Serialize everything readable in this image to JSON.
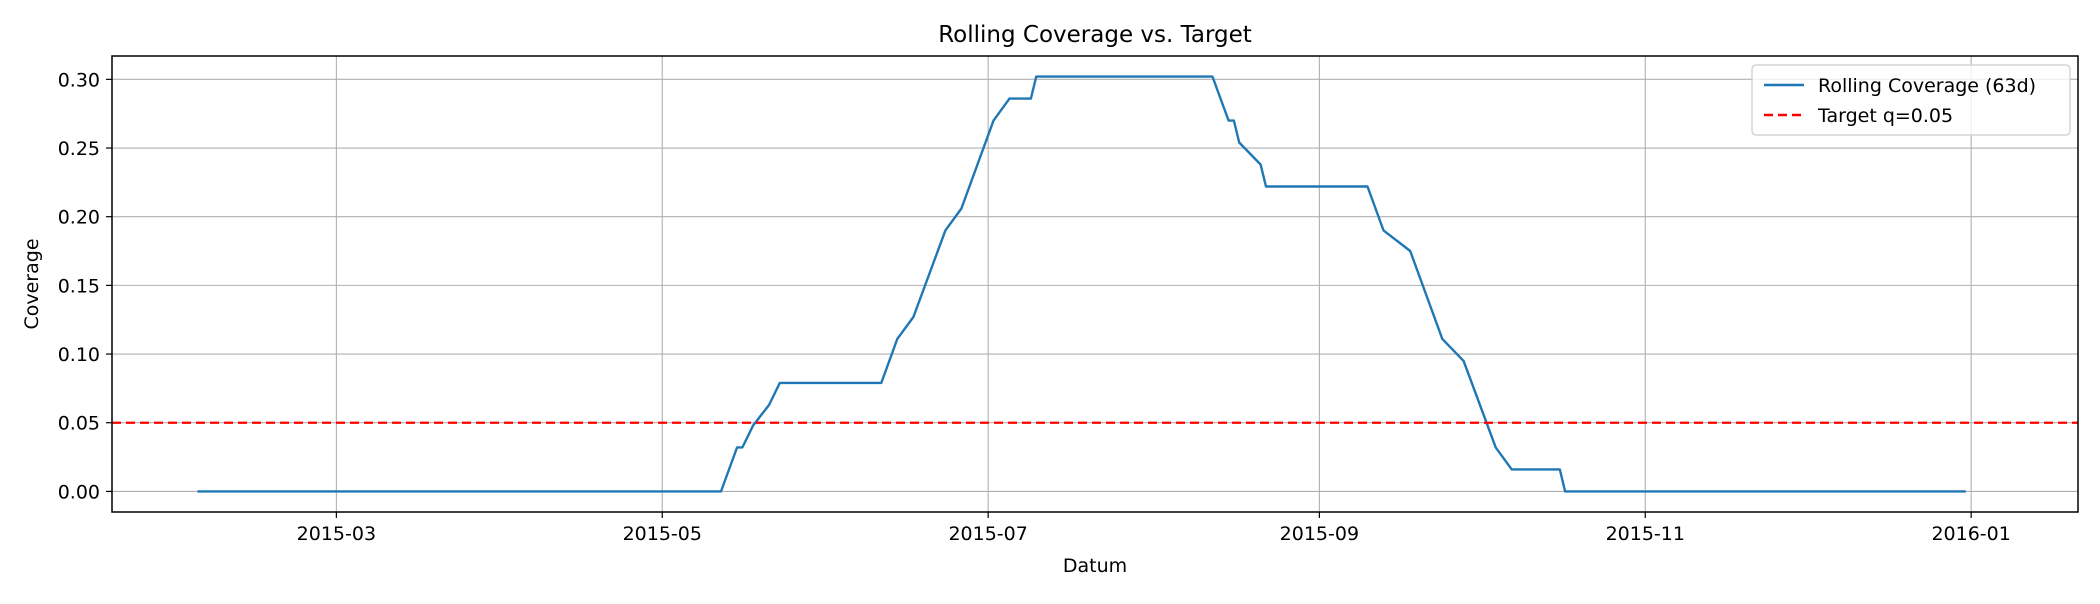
{
  "chart_data": {
    "type": "line",
    "title": "Rolling Coverage vs. Target",
    "xlabel": "Datum",
    "ylabel": "Coverage",
    "xlim": [
      "2015-01-18",
      "2016-01-21"
    ],
    "ylim": [
      -0.015,
      0.317
    ],
    "xticks": [
      "2015-03-01",
      "2015-05-01",
      "2015-07-01",
      "2015-09-01",
      "2015-11-01",
      "2016-01-01"
    ],
    "xtick_labels": [
      "2015-03",
      "2015-05",
      "2015-07",
      "2015-09",
      "2015-11",
      "2016-01"
    ],
    "yticks": [
      0.0,
      0.05,
      0.1,
      0.15,
      0.2,
      0.25,
      0.3
    ],
    "ytick_labels": [
      "0.00",
      "0.05",
      "0.10",
      "0.15",
      "0.20",
      "0.25",
      "0.30"
    ],
    "grid": true,
    "legend_position": "top-right",
    "series": [
      {
        "name": "Rolling Coverage (63d)",
        "color": "#1f77b4",
        "style": "solid",
        "x": [
          "2015-02-03",
          "2015-05-12",
          "2015-05-15",
          "2015-05-16",
          "2015-05-18",
          "2015-05-21",
          "2015-05-23",
          "2015-06-11",
          "2015-06-14",
          "2015-06-17",
          "2015-06-23",
          "2015-06-26",
          "2015-07-02",
          "2015-07-05",
          "2015-07-09",
          "2015-07-10",
          "2015-08-12",
          "2015-08-15",
          "2015-08-16",
          "2015-08-17",
          "2015-08-21",
          "2015-08-22",
          "2015-09-10",
          "2015-09-13",
          "2015-09-18",
          "2015-09-24",
          "2015-09-28",
          "2015-10-04",
          "2015-10-07",
          "2015-10-16",
          "2015-10-17",
          "2015-12-31"
        ],
        "values": [
          0.0,
          0.0,
          0.032,
          0.032,
          0.048,
          0.063,
          0.079,
          0.079,
          0.111,
          0.127,
          0.19,
          0.206,
          0.27,
          0.286,
          0.286,
          0.302,
          0.302,
          0.27,
          0.27,
          0.254,
          0.238,
          0.222,
          0.222,
          0.19,
          0.175,
          0.111,
          0.095,
          0.032,
          0.016,
          0.016,
          0.0,
          0.0
        ]
      },
      {
        "name": "Target q=0.05",
        "color": "#ff0000",
        "style": "dashed",
        "type": "hline",
        "value": 0.05
      }
    ]
  }
}
